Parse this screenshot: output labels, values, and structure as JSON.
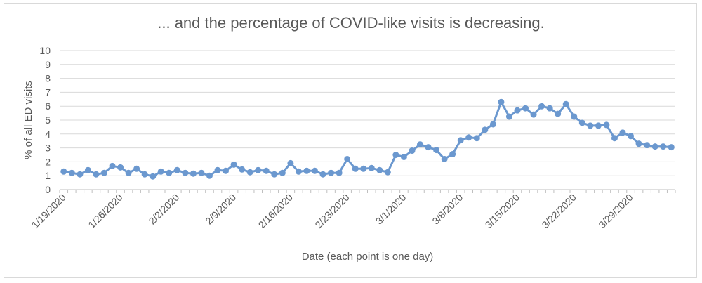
{
  "chart_data": {
    "type": "line",
    "title": "... and the percentage of COVID-like visits is decreasing.",
    "xlabel": "Date (each point is one day)",
    "ylabel": "% of all ED visits",
    "ylim": [
      0,
      10
    ],
    "y_ticks": [
      "0",
      "1",
      "2",
      "3",
      "4",
      "5",
      "6",
      "7",
      "8",
      "9",
      "10"
    ],
    "x_tick_labels": [
      "1/19/2020",
      "1/26/2020",
      "2/2/2020",
      "2/9/2020",
      "2/16/2020",
      "2/23/2020",
      "3/1/2020",
      "3/8/2020",
      "3/15/2020",
      "3/22/2020",
      "3/29/2020"
    ],
    "x_start_label": "1/19/2020",
    "grid": "horizontal",
    "legend": "none",
    "series": [
      {
        "color": "#6b98cf",
        "values": [
          1.3,
          1.2,
          1.1,
          1.4,
          1.1,
          1.2,
          1.7,
          1.6,
          1.2,
          1.5,
          1.1,
          0.95,
          1.3,
          1.2,
          1.4,
          1.2,
          1.15,
          1.2,
          1.0,
          1.4,
          1.35,
          1.8,
          1.45,
          1.25,
          1.4,
          1.35,
          1.1,
          1.2,
          1.9,
          1.3,
          1.35,
          1.35,
          1.1,
          1.2,
          1.2,
          2.2,
          1.5,
          1.5,
          1.55,
          1.4,
          1.25,
          2.5,
          2.35,
          2.8,
          3.25,
          3.05,
          2.85,
          2.2,
          2.55,
          3.55,
          3.75,
          3.7,
          4.3,
          4.7,
          6.3,
          5.25,
          5.7,
          5.85,
          5.4,
          6.0,
          5.85,
          5.45,
          6.15,
          5.25,
          4.8,
          4.6,
          4.6,
          4.65,
          3.7,
          4.1,
          3.85,
          3.3,
          3.2,
          3.1,
          3.1,
          3.05
        ]
      }
    ]
  }
}
